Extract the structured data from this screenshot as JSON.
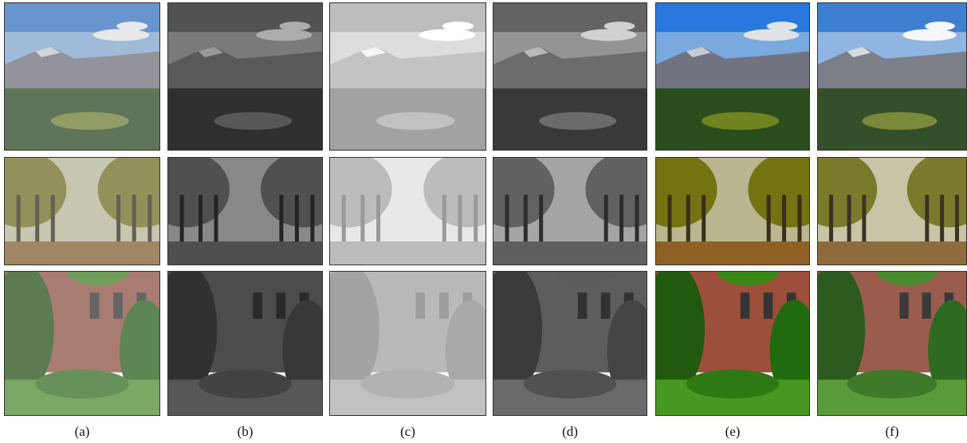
{
  "labels": [
    "(a)",
    "(b)",
    "(c)",
    "(d)",
    "(e)",
    "(f)"
  ]
}
